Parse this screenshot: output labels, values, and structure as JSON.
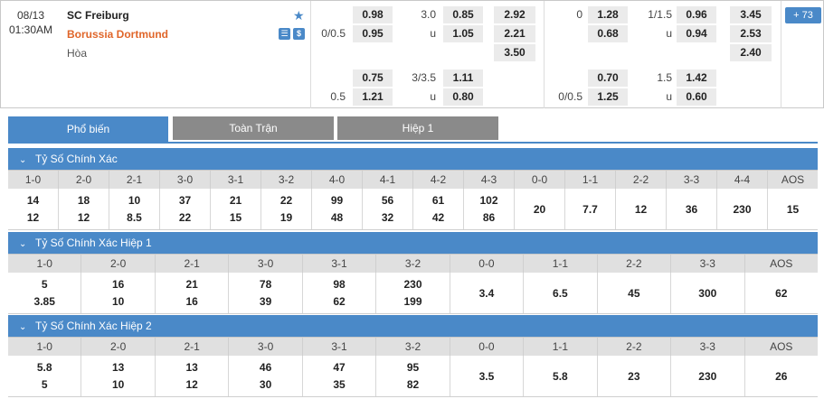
{
  "match": {
    "date": "08/13",
    "time": "01:30AM",
    "home": "SC Freiburg",
    "away": "Borussia Dortmund",
    "draw": "Hòa",
    "more_count": "73",
    "icons": [
      "tv-icon",
      "money-icon"
    ],
    "icon_glyphs": [
      "☰",
      "$"
    ],
    "ft": {
      "x1": [
        "0.98",
        "0.95",
        ""
      ],
      "hdp": [
        "",
        "0/0.5",
        ""
      ],
      "ou_line": "3.0",
      "ou_u": "u",
      "ou": [
        "0.85",
        "1.05"
      ],
      "x12": [
        "2.92",
        "2.21",
        "3.50"
      ],
      "row2": {
        "hcp1": "",
        "hcp2": "0.5",
        "h1": "0.75",
        "h2": "1.21",
        "ouline": "3/3.5",
        "u": "u",
        "o1": "1.11",
        "o2": "0.80"
      }
    },
    "ht": {
      "hdp_line": "0",
      "h": [
        "1.28",
        "0.68"
      ],
      "ou_line": "1/1.5",
      "ou_u": "u",
      "ou": [
        "0.96",
        "0.94"
      ],
      "x12": [
        "3.45",
        "2.53",
        "2.40"
      ],
      "row2": {
        "hcp1": "",
        "hcp2": "0/0.5",
        "h1": "0.70",
        "h2": "1.25",
        "ouline": "1.5",
        "u": "u",
        "o1": "1.42",
        "o2": "0.60"
      }
    }
  },
  "tabs": [
    "Phổ biến",
    "Toàn Trận",
    "Hiệp 1"
  ],
  "sections": [
    {
      "title": "Tỷ Số Chính Xác",
      "headers": [
        "1-0",
        "2-0",
        "2-1",
        "3-0",
        "3-1",
        "3-2",
        "4-0",
        "4-1",
        "4-2",
        "4-3",
        "0-0",
        "1-1",
        "2-2",
        "3-3",
        "4-4",
        "AOS"
      ],
      "values": [
        [
          "14",
          "12"
        ],
        [
          "18",
          "12"
        ],
        [
          "10",
          "8.5"
        ],
        [
          "37",
          "22"
        ],
        [
          "21",
          "15"
        ],
        [
          "22",
          "19"
        ],
        [
          "99",
          "48"
        ],
        [
          "56",
          "32"
        ],
        [
          "61",
          "42"
        ],
        [
          "102",
          "86"
        ],
        [
          "20"
        ],
        [
          "7.7"
        ],
        [
          "12"
        ],
        [
          "36"
        ],
        [
          "230"
        ],
        [
          "15"
        ]
      ]
    },
    {
      "title": "Tỷ Số Chính Xác Hiệp 1",
      "headers": [
        "1-0",
        "2-0",
        "2-1",
        "3-0",
        "3-1",
        "3-2",
        "0-0",
        "1-1",
        "2-2",
        "3-3",
        "AOS"
      ],
      "values": [
        [
          "5",
          "3.85"
        ],
        [
          "16",
          "10"
        ],
        [
          "21",
          "16"
        ],
        [
          "78",
          "39"
        ],
        [
          "98",
          "62"
        ],
        [
          "230",
          "199"
        ],
        [
          "3.4"
        ],
        [
          "6.5"
        ],
        [
          "45"
        ],
        [
          "300"
        ],
        [
          "62"
        ]
      ]
    },
    {
      "title": "Tỷ Số Chính Xác Hiệp 2",
      "headers": [
        "1-0",
        "2-0",
        "2-1",
        "3-0",
        "3-1",
        "3-2",
        "0-0",
        "1-1",
        "2-2",
        "3-3",
        "AOS"
      ],
      "values": [
        [
          "5.8",
          "5"
        ],
        [
          "13",
          "10"
        ],
        [
          "13",
          "12"
        ],
        [
          "46",
          "30"
        ],
        [
          "47",
          "35"
        ],
        [
          "95",
          "82"
        ],
        [
          "3.5"
        ],
        [
          "5.8"
        ],
        [
          "23"
        ],
        [
          "230"
        ],
        [
          "26"
        ]
      ]
    }
  ],
  "colors": {
    "accent": "#4a89c8",
    "away_team": "#e0662a",
    "tab_inactive": "#8a8a8a"
  }
}
